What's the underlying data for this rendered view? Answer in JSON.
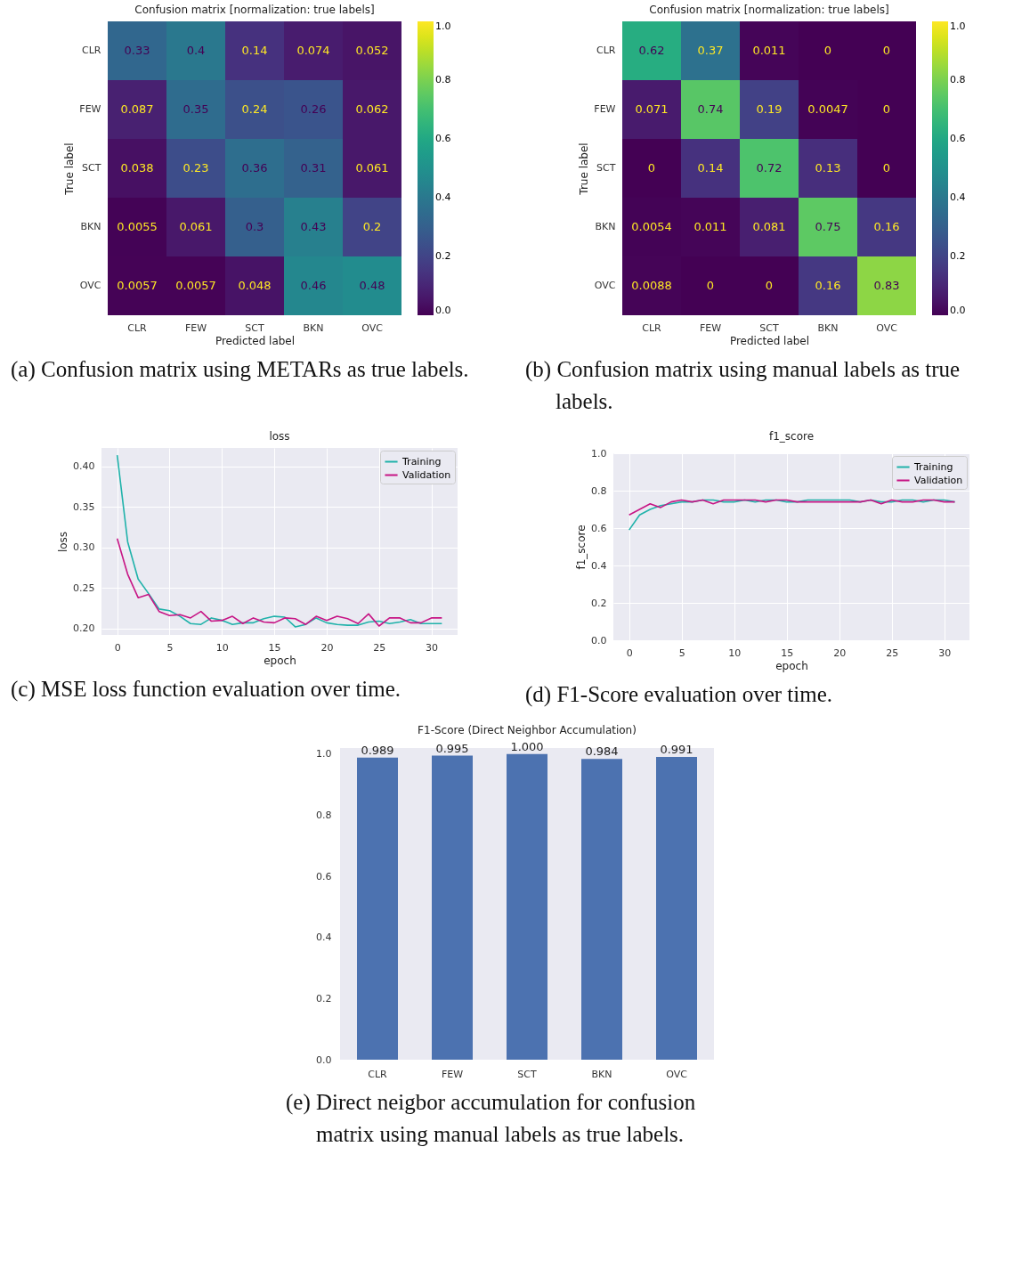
{
  "chart_data": [
    {
      "type": "heatmap",
      "title": "Confusion matrix [normalization: true labels]",
      "xlabel": "Predicted label",
      "ylabel": "True label",
      "categories": [
        "CLR",
        "FEW",
        "SCT",
        "BKN",
        "OVC"
      ],
      "y_categories": [
        "CLR",
        "FEW",
        "SCT",
        "BKN",
        "OVC"
      ],
      "cells": [
        [
          0.33,
          0.4,
          0.14,
          0.074,
          0.052
        ],
        [
          0.087,
          0.35,
          0.24,
          0.26,
          0.062
        ],
        [
          0.038,
          0.23,
          0.36,
          0.31,
          0.061
        ],
        [
          0.0055,
          0.061,
          0.3,
          0.43,
          0.2
        ],
        [
          0.0057,
          0.0057,
          0.048,
          0.46,
          0.48
        ]
      ],
      "clim": [
        0,
        1
      ],
      "cticks": [
        {
          "value": 0,
          "label": "0.0"
        },
        {
          "value": 0.2,
          "label": "0.2"
        },
        {
          "value": 0.4,
          "label": "0.4"
        },
        {
          "value": 0.6,
          "label": "0.6"
        },
        {
          "value": 0.8,
          "label": "0.8"
        },
        {
          "value": 1,
          "label": "1.0"
        }
      ],
      "data_labels": true,
      "annotations": [
        "(a) Confusion matrix using METARs as true labels."
      ]
    },
    {
      "type": "heatmap",
      "title": "Confusion matrix [normalization: true labels]",
      "xlabel": "Predicted label",
      "ylabel": "True label",
      "categories": [
        "CLR",
        "FEW",
        "SCT",
        "BKN",
        "OVC"
      ],
      "y_categories": [
        "CLR",
        "FEW",
        "SCT",
        "BKN",
        "OVC"
      ],
      "cells": [
        [
          0.62,
          0.37,
          0.011,
          0,
          0
        ],
        [
          0.071,
          0.74,
          0.19,
          0.0047,
          0
        ],
        [
          0,
          0.14,
          0.72,
          0.13,
          0
        ],
        [
          0.0054,
          0.011,
          0.081,
          0.75,
          0.16
        ],
        [
          0.0088,
          0,
          0,
          0.16,
          0.83
        ]
      ],
      "clim": [
        0,
        1
      ],
      "cticks": [
        {
          "value": 0,
          "label": "0.0"
        },
        {
          "value": 0.2,
          "label": "0.2"
        },
        {
          "value": 0.4,
          "label": "0.4"
        },
        {
          "value": 0.6,
          "label": "0.6"
        },
        {
          "value": 0.8,
          "label": "0.8"
        },
        {
          "value": 1,
          "label": "1.0"
        }
      ],
      "data_labels": true,
      "annotations": [
        "(b) Confusion matrix using manual labels as true labels."
      ]
    },
    {
      "type": "line",
      "title": "loss",
      "xlabel": "epoch",
      "ylabel": "loss",
      "x": [
        0,
        1,
        2,
        3,
        4,
        5,
        6,
        7,
        8,
        9,
        10,
        11,
        12,
        13,
        14,
        15,
        16,
        17,
        18,
        19,
        20,
        21,
        22,
        23,
        24,
        25,
        26,
        27,
        28,
        29,
        30,
        31
      ],
      "series": [
        {
          "name": "Training",
          "color": "#20b2aa",
          "values": [
            0.414,
            0.307,
            0.261,
            0.243,
            0.224,
            0.222,
            0.215,
            0.206,
            0.205,
            0.213,
            0.21,
            0.205,
            0.207,
            0.207,
            0.212,
            0.215,
            0.214,
            0.202,
            0.205,
            0.213,
            0.207,
            0.205,
            0.204,
            0.204,
            0.208,
            0.209,
            0.206,
            0.208,
            0.211,
            0.206,
            0.206,
            0.206
          ]
        },
        {
          "name": "Validation",
          "color": "#c71585",
          "values": [
            0.311,
            0.267,
            0.238,
            0.242,
            0.221,
            0.216,
            0.217,
            0.213,
            0.221,
            0.209,
            0.21,
            0.215,
            0.206,
            0.213,
            0.208,
            0.207,
            0.213,
            0.212,
            0.205,
            0.215,
            0.21,
            0.215,
            0.212,
            0.206,
            0.218,
            0.203,
            0.213,
            0.213,
            0.207,
            0.207,
            0.213,
            0.213
          ]
        }
      ],
      "xlim": [
        -1.5,
        32.5
      ],
      "xticks": [
        0,
        5,
        10,
        15,
        20,
        25,
        30
      ],
      "ylim": [
        0.192,
        0.423
      ],
      "yticks": [
        {
          "value": 0.2,
          "label": "0.20"
        },
        {
          "value": 0.25,
          "label": "0.25"
        },
        {
          "value": 0.3,
          "label": "0.30"
        },
        {
          "value": 0.35,
          "label": "0.35"
        },
        {
          "value": 0.4,
          "label": "0.40"
        }
      ],
      "grid": true,
      "legend": "top right",
      "annotations": [
        "(c) MSE loss function evaluation over time."
      ]
    },
    {
      "type": "line",
      "title": "f1_score",
      "xlabel": "epoch",
      "ylabel": "f1_score",
      "x": [
        0,
        1,
        2,
        3,
        4,
        5,
        6,
        7,
        8,
        9,
        10,
        11,
        12,
        13,
        14,
        15,
        16,
        17,
        18,
        19,
        20,
        21,
        22,
        23,
        24,
        25,
        26,
        27,
        28,
        29,
        30,
        31
      ],
      "series": [
        {
          "name": "Training",
          "color": "#20b2aa",
          "values": [
            0.59,
            0.67,
            0.7,
            0.72,
            0.73,
            0.74,
            0.74,
            0.75,
            0.75,
            0.74,
            0.74,
            0.75,
            0.74,
            0.75,
            0.75,
            0.74,
            0.74,
            0.75,
            0.75,
            0.75,
            0.75,
            0.75,
            0.74,
            0.75,
            0.74,
            0.74,
            0.75,
            0.75,
            0.74,
            0.75,
            0.75,
            0.74
          ]
        },
        {
          "name": "Validation",
          "color": "#c71585",
          "values": [
            0.67,
            0.7,
            0.73,
            0.71,
            0.74,
            0.75,
            0.74,
            0.75,
            0.73,
            0.75,
            0.75,
            0.75,
            0.75,
            0.74,
            0.75,
            0.75,
            0.74,
            0.74,
            0.74,
            0.74,
            0.74,
            0.74,
            0.74,
            0.75,
            0.73,
            0.75,
            0.74,
            0.74,
            0.75,
            0.75,
            0.74,
            0.74
          ]
        }
      ],
      "xlim": [
        -1.5,
        32.4
      ],
      "xticks": [
        0,
        5,
        10,
        15,
        20,
        25,
        30
      ],
      "ylim": [
        0,
        1
      ],
      "yticks": [
        {
          "value": 0,
          "label": "0.0"
        },
        {
          "value": 0.2,
          "label": "0.2"
        },
        {
          "value": 0.4,
          "label": "0.4"
        },
        {
          "value": 0.6,
          "label": "0.6"
        },
        {
          "value": 0.8,
          "label": "0.8"
        },
        {
          "value": 1,
          "label": "1.0"
        }
      ],
      "grid": true,
      "legend": "top right",
      "annotations": [
        "(d) F1-Score evaluation over time."
      ]
    },
    {
      "type": "bar",
      "title": "F1-Score (Direct Neighbor Accumulation)",
      "categories": [
        "CLR",
        "FEW",
        "SCT",
        "BKN",
        "OVC"
      ],
      "values": [
        0.989,
        0.995,
        1.0,
        0.984,
        0.991
      ],
      "color": "#4c72b0",
      "value_labels": [
        "0.989",
        "0.995",
        "1.000",
        "0.984",
        "0.991"
      ],
      "ylim": [
        0,
        1.02
      ],
      "yticks": [
        {
          "value": 0,
          "label": "0.0"
        },
        {
          "value": 0.2,
          "label": "0.2"
        },
        {
          "value": 0.4,
          "label": "0.4"
        },
        {
          "value": 0.6,
          "label": "0.6"
        },
        {
          "value": 0.8,
          "label": "0.8"
        },
        {
          "value": 1,
          "label": "1.0"
        }
      ],
      "grid": false,
      "annotations": [
        "(e) Direct neigbor accumulation for confusion matrix using manual labels as true labels."
      ]
    }
  ]
}
